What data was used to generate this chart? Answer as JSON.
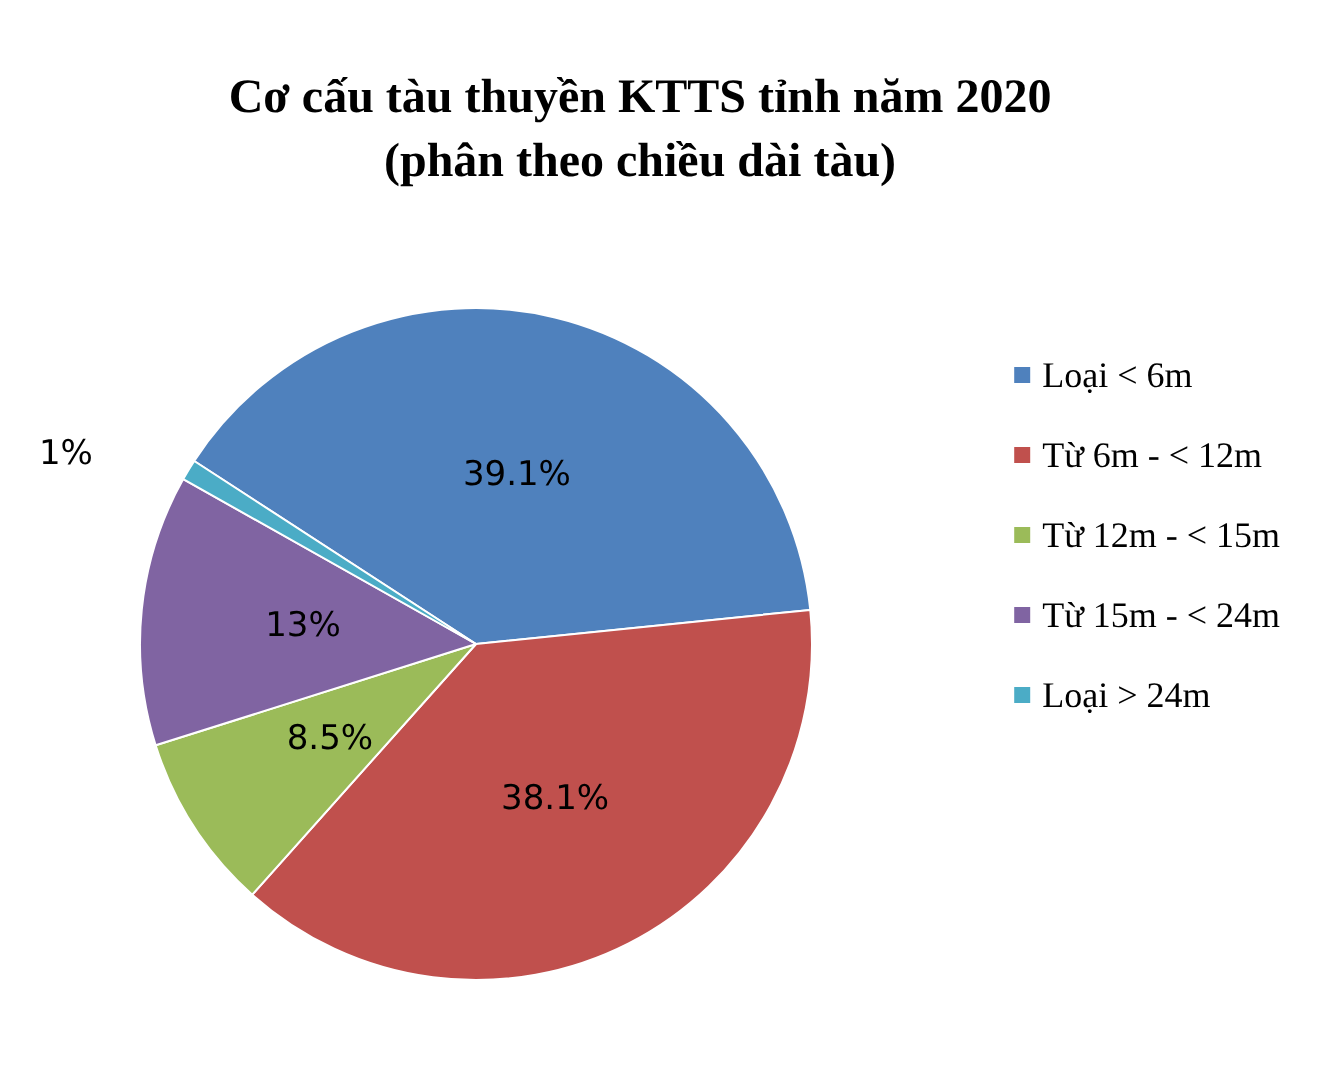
{
  "chart_data": {
    "type": "pie",
    "title": "Cơ cấu tàu thuyền KTTS tỉnh năm 2020\n(phân theo chiều dài tàu)",
    "categories": [
      "Loại < 6m",
      "Từ 6m - < 12m",
      "Từ 12m - < 15m",
      "Từ 15m - < 24m",
      "Loại > 24m"
    ],
    "values": [
      39.1,
      38.1,
      8.5,
      13,
      1
    ],
    "colors": [
      "#4f81bd",
      "#c0504d",
      "#9bbb59",
      "#8064a2",
      "#4bacc6"
    ],
    "value_labels": [
      "39.1%",
      "38.1%",
      "8.5%",
      "13%",
      "1%"
    ],
    "legend": "right"
  }
}
